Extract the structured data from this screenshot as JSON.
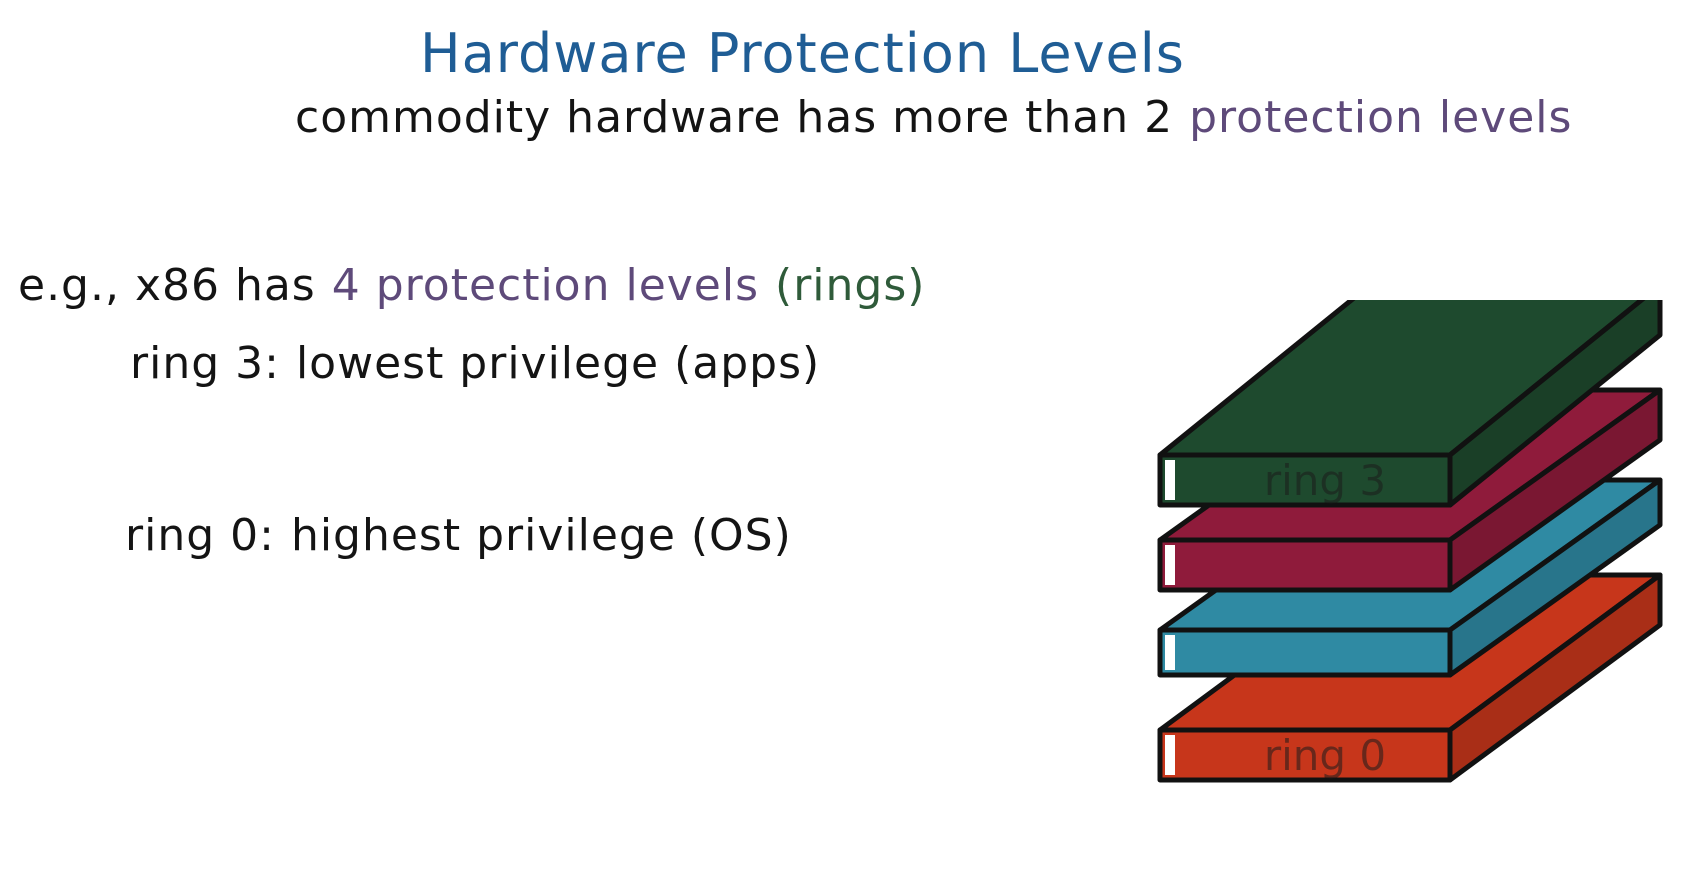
{
  "title": "Hardware Protection Levels",
  "subtitle": {
    "text": "commodity hardware has more than 2",
    "highlight": "protection levels"
  },
  "example": {
    "prefix": "e.g., x86 has",
    "levels": "4 protection levels",
    "rings": "(rings)"
  },
  "ring3": {
    "label": "ring 3:",
    "text": "lowest privilege (apps)"
  },
  "ring0": {
    "label": "ring 0:",
    "text": "highest privilege (OS)"
  },
  "stack": {
    "layers": [
      {
        "label": "ring 3",
        "color": "#1e4a2e"
      },
      {
        "label": "",
        "color": "#8f1b3b"
      },
      {
        "label": "",
        "color": "#2f8aa3"
      },
      {
        "label": "ring 0",
        "color": "#c7361b"
      }
    ]
  },
  "colors": {
    "title": "#1f5d95",
    "highlight_purple": "#5e4a7a",
    "highlight_green": "#2f5b3a",
    "ink": "#141414"
  }
}
